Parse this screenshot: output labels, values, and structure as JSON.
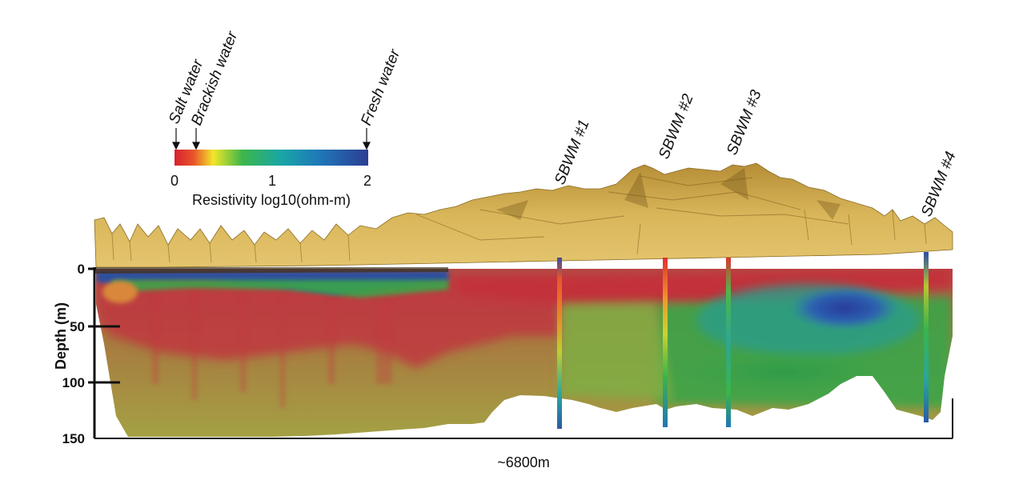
{
  "legend": {
    "salt_label": "Salt water",
    "brackish_label": "Brackish water",
    "fresh_label": "Fresh water",
    "tick_0": "0",
    "tick_1": "1",
    "tick_2": "2",
    "title": "Resistivity log10(ohm-m)",
    "colors": [
      "#d7202e",
      "#f1e52a",
      "#3bb54a",
      "#18a3b3",
      "#2c3e96"
    ]
  },
  "axis": {
    "ylabel": "Depth (m)",
    "ticks": [
      "0",
      "50",
      "100",
      "150"
    ],
    "xlabel": "~6800m"
  },
  "wells": [
    "SBWM #1",
    "SBWM #2",
    "SBWM #3",
    "SBWM #4"
  ],
  "colors": {
    "terrain": "#d4ae52",
    "terrain_dark": "#8a6a23",
    "fresh": "#2a4a9e",
    "salt": "#c8303a",
    "brackish_green": "#3aa54a",
    "olive": "#9c9a45"
  }
}
